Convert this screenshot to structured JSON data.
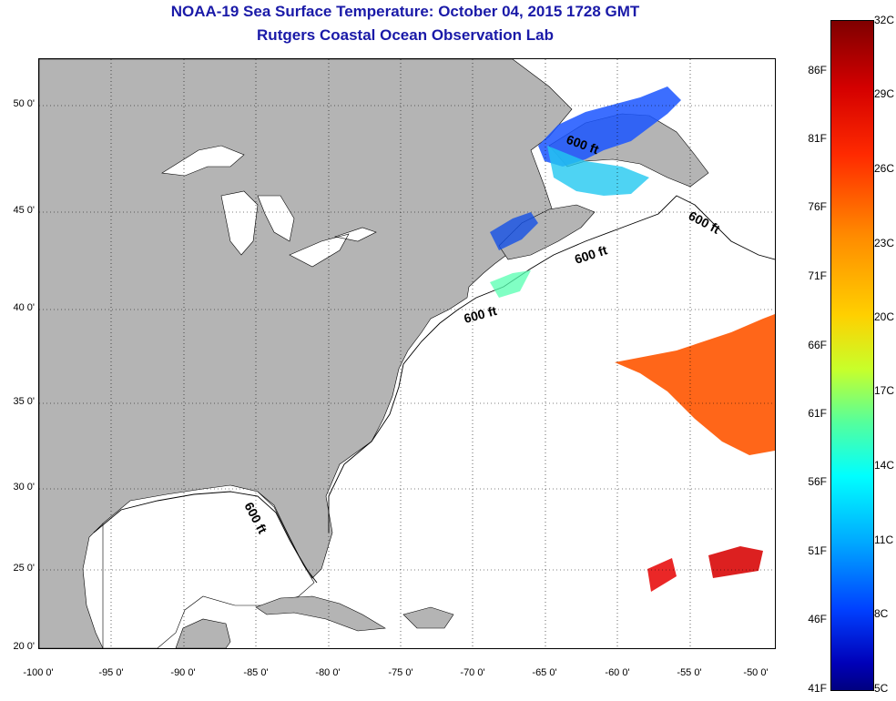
{
  "title_line_1": "NOAA-19 Sea Surface Temperature:  October 04, 2015 1728 GMT",
  "title_line_2": "Rutgers Coastal Ocean Observation Lab",
  "map": {
    "lon_range": [
      -100,
      -50
    ],
    "lat_range": [
      20,
      52.5
    ],
    "land_color": "#b4b4b4",
    "ocean_color": "#ffffff",
    "lat_ticks": [
      "50 0'",
      "45 0'",
      "40 0'",
      "35 0'",
      "30 0'",
      "25 0'",
      "20 0'"
    ],
    "lon_ticks": [
      "-100 0'",
      "-95 0'",
      "-90 0'",
      "-85 0'",
      "-80 0'",
      "-75 0'",
      "-70 0'",
      "-65 0'",
      "-60 0'",
      "-55 0'",
      "-50 0'"
    ],
    "contour_labels": [
      "600 ft",
      "600 ft",
      "600 ft",
      "600 ft",
      "600 ft"
    ]
  },
  "colorbar": {
    "fahrenheit_labels": [
      "86F",
      "81F",
      "76F",
      "71F",
      "66F",
      "61F",
      "56F",
      "51F",
      "46F",
      "41F"
    ],
    "celsius_labels": [
      "32C",
      "29C",
      "26C",
      "23C",
      "20C",
      "17C",
      "14C",
      "11C",
      "8C",
      "5C"
    ],
    "colors": [
      "#7f0000",
      "#d40000",
      "#ff2a00",
      "#ff8a00",
      "#ffd000",
      "#c8ff2a",
      "#55ff9c",
      "#00ffff",
      "#00a8ff",
      "#0040ff",
      "#0000b8",
      "#000080"
    ]
  }
}
